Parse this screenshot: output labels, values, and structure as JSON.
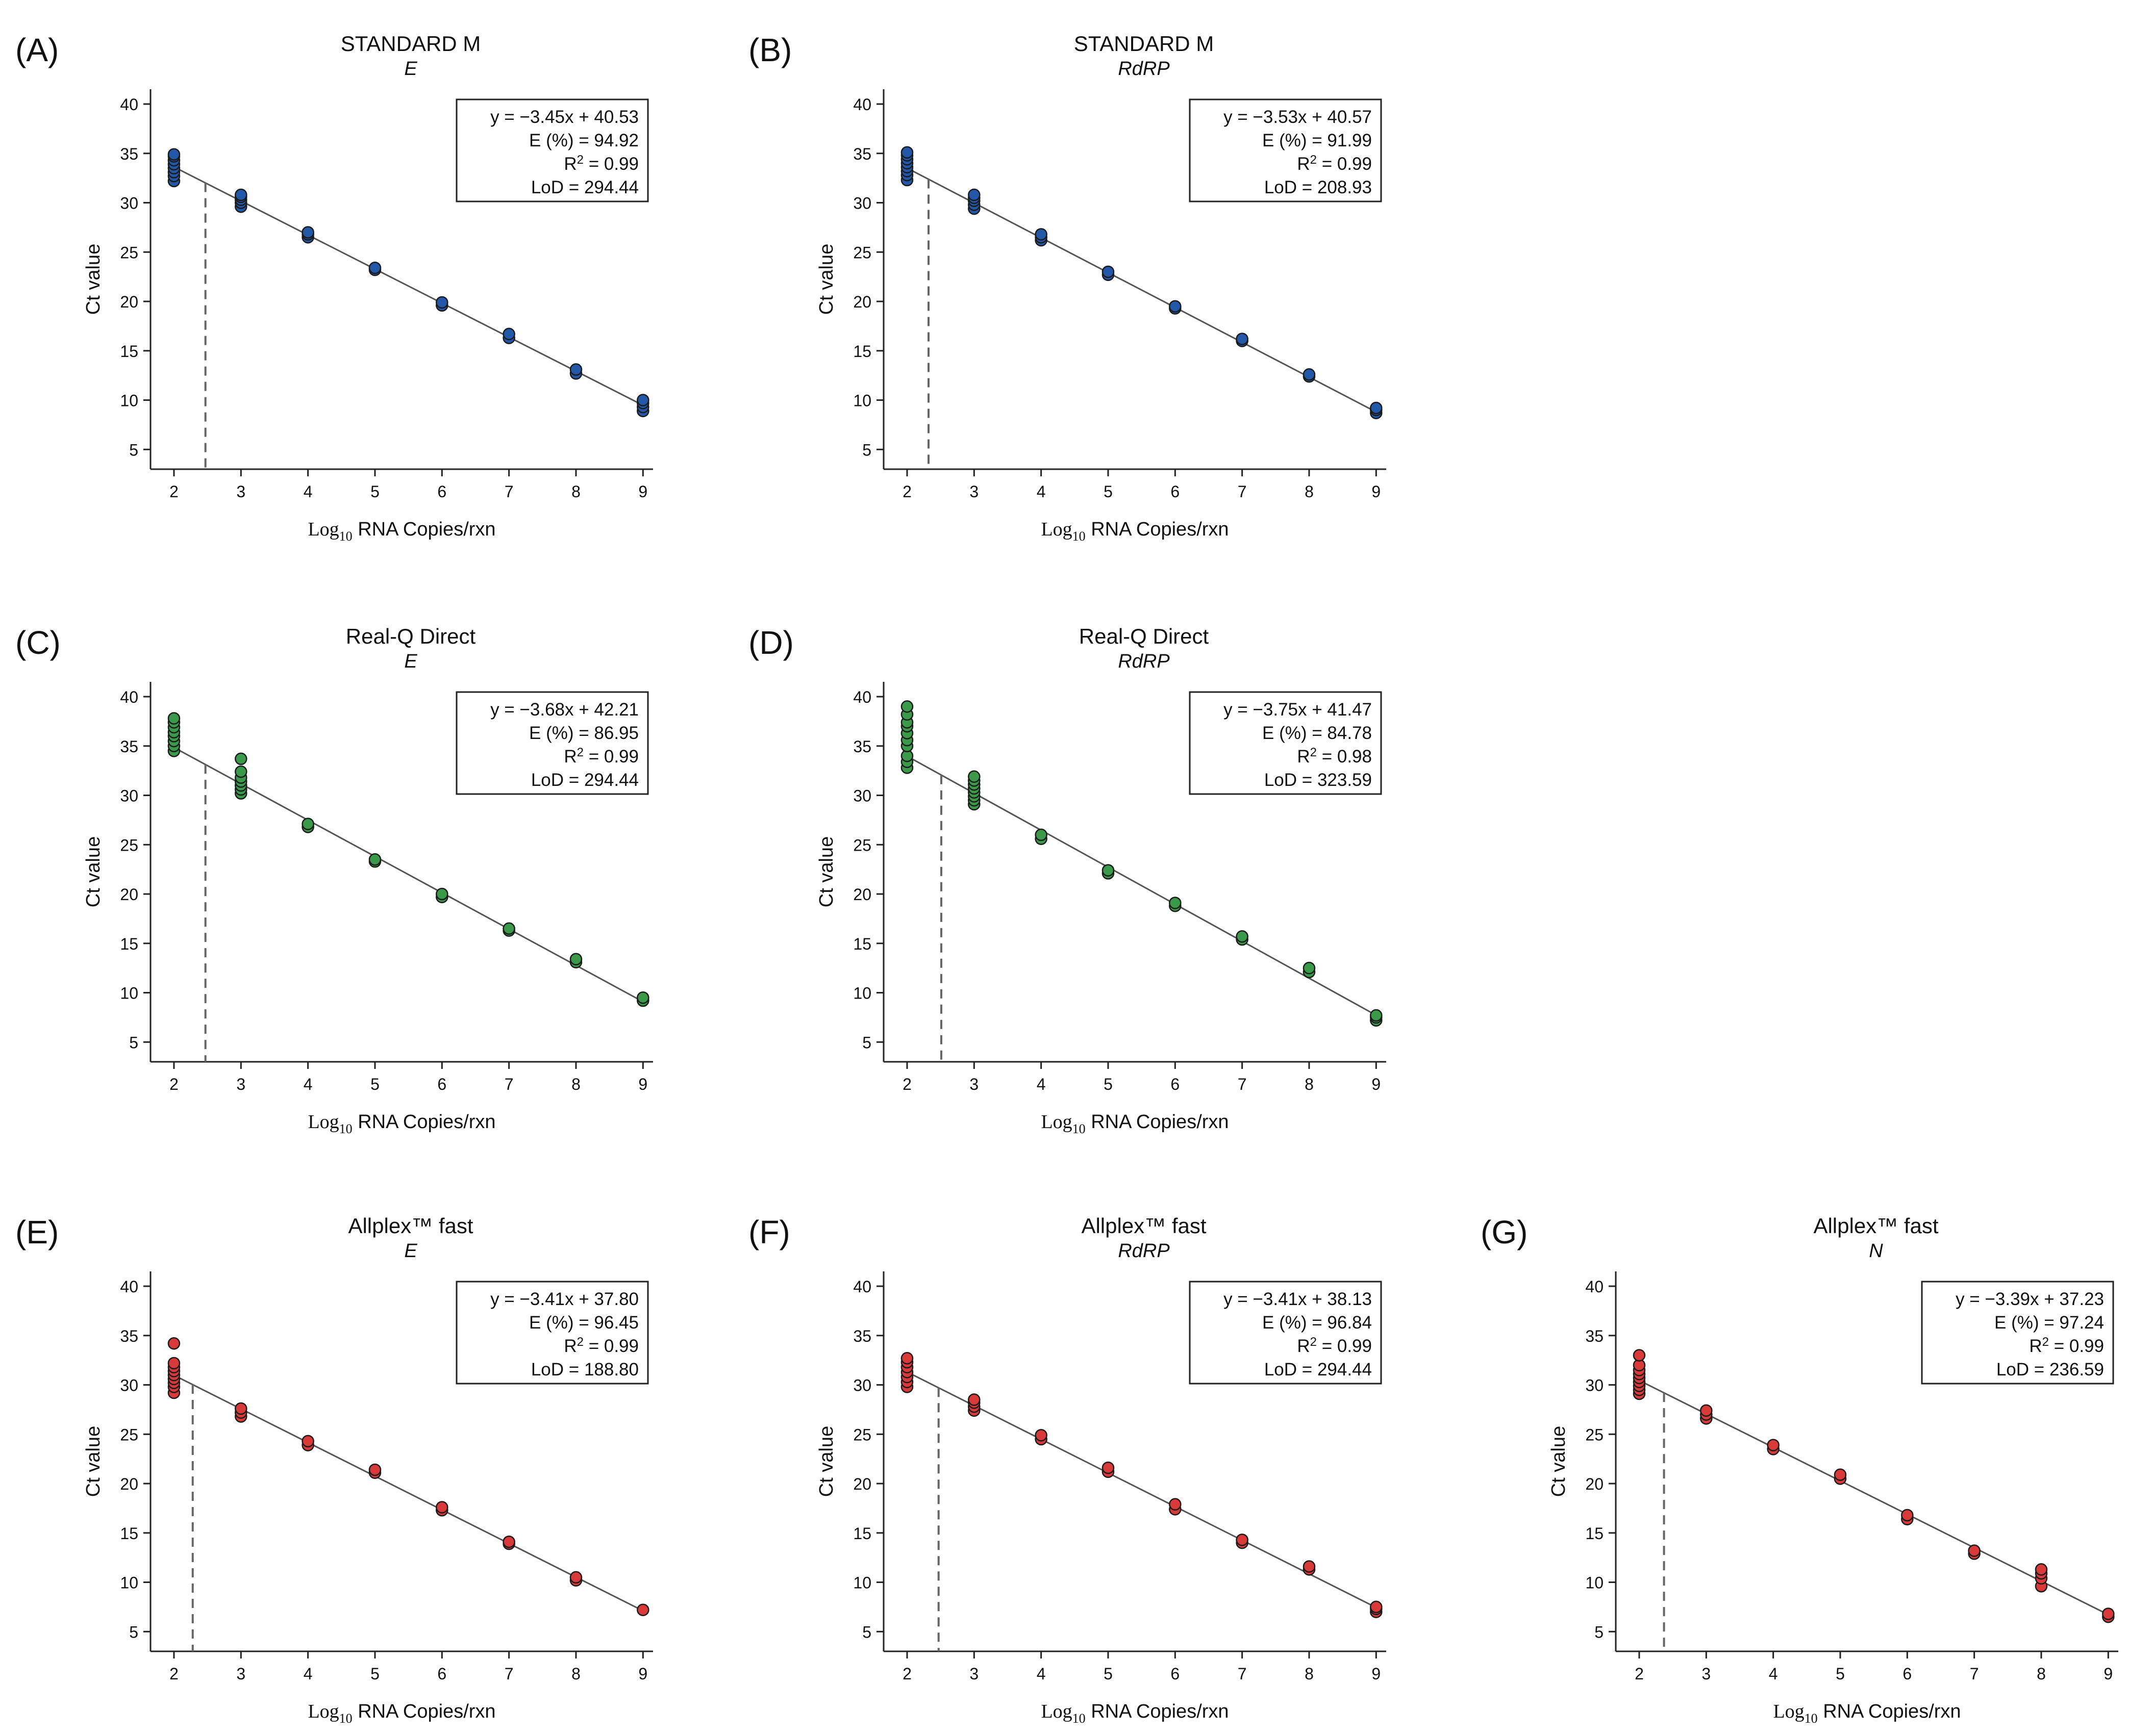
{
  "axis_common": {
    "ylabel": "Ct value",
    "xlabel_prefix": "Log",
    "xlabel_sub": "10",
    "xlabel_suffix": " RNA Copies/rxn",
    "xlim": [
      1.65,
      9.15
    ],
    "ylim": [
      3,
      41.5
    ],
    "xticks": [
      2,
      3,
      4,
      5,
      6,
      7,
      8,
      9
    ],
    "yticks": [
      5,
      10,
      15,
      20,
      25,
      30,
      35,
      40
    ]
  },
  "colors": {
    "blue": "#2358a8",
    "green": "#3a9a4a",
    "red": "#d83a3a",
    "line": "#555555",
    "dash": "#666666"
  },
  "chart_data": [
    {
      "type": "scatter",
      "panel": "(A)",
      "title": "STANDARD M",
      "subtitle": "E",
      "color": "blue",
      "legend": {
        "equation": "y = −3.45x + 40.53",
        "efficiency": "E (%) = 94.92",
        "r2_prefix": "R",
        "r2_value": "2 = 0.99",
        "lod": "LoD = 294.44"
      },
      "regression": {
        "slope": -3.45,
        "intercept": 40.53
      },
      "lod_log10": 2.47,
      "points": [
        {
          "x": 2,
          "y": [
            32.2,
            32.7,
            33.1,
            33.5,
            33.9,
            34.3,
            34.7,
            34.9
          ]
        },
        {
          "x": 3,
          "y": [
            29.6,
            30.0,
            30.3,
            30.6,
            30.8
          ]
        },
        {
          "x": 4,
          "y": [
            26.5,
            26.8,
            27.0
          ]
        },
        {
          "x": 5,
          "y": [
            23.2,
            23.4
          ]
        },
        {
          "x": 6,
          "y": [
            19.6,
            19.9
          ]
        },
        {
          "x": 7,
          "y": [
            16.3,
            16.7
          ]
        },
        {
          "x": 8,
          "y": [
            12.7,
            13.1
          ]
        },
        {
          "x": 9,
          "y": [
            8.9,
            9.3,
            9.7,
            10.0
          ]
        }
      ]
    },
    {
      "type": "scatter",
      "panel": "(B)",
      "title": "STANDARD M",
      "subtitle": "RdRP",
      "color": "blue",
      "legend": {
        "equation": "y = −3.53x + 40.57",
        "efficiency": "E (%) = 91.99",
        "r2_prefix": "R",
        "r2_value": "2 = 0.99",
        "lod": "LoD = 208.93"
      },
      "regression": {
        "slope": -3.53,
        "intercept": 40.57
      },
      "lod_log10": 2.32,
      "points": [
        {
          "x": 2,
          "y": [
            32.3,
            32.8,
            33.2,
            33.6,
            34.0,
            34.4,
            34.8,
            35.1
          ]
        },
        {
          "x": 3,
          "y": [
            29.4,
            29.8,
            30.2,
            30.5,
            30.8
          ]
        },
        {
          "x": 4,
          "y": [
            26.2,
            26.5,
            26.8
          ]
        },
        {
          "x": 5,
          "y": [
            22.7,
            23.0
          ]
        },
        {
          "x": 6,
          "y": [
            19.3,
            19.5
          ]
        },
        {
          "x": 7,
          "y": [
            16.0,
            16.2
          ]
        },
        {
          "x": 8,
          "y": [
            12.4,
            12.6
          ]
        },
        {
          "x": 9,
          "y": [
            8.7,
            9.0,
            9.2
          ]
        }
      ]
    },
    {
      "type": "scatter",
      "panel": "(C)",
      "title": "Real-Q Direct",
      "subtitle": "E",
      "color": "green",
      "legend": {
        "equation": "y = −3.68x + 42.21",
        "efficiency": "E (%) = 86.95",
        "r2_prefix": "R",
        "r2_value": "2 = 0.99",
        "lod": "LoD = 294.44"
      },
      "regression": {
        "slope": -3.68,
        "intercept": 42.21
      },
      "lod_log10": 2.47,
      "points": [
        {
          "x": 2,
          "y": [
            34.5,
            35.0,
            35.5,
            36.0,
            36.4,
            36.9,
            37.4,
            37.8
          ]
        },
        {
          "x": 3,
          "y": [
            30.2,
            30.6,
            31.0,
            31.4,
            31.8,
            32.4,
            33.7
          ]
        },
        {
          "x": 4,
          "y": [
            26.8,
            27.1
          ]
        },
        {
          "x": 5,
          "y": [
            23.3,
            23.5
          ]
        },
        {
          "x": 6,
          "y": [
            19.7,
            20.0
          ]
        },
        {
          "x": 7,
          "y": [
            16.3,
            16.5
          ]
        },
        {
          "x": 8,
          "y": [
            13.1,
            13.4
          ]
        },
        {
          "x": 9,
          "y": [
            9.2,
            9.5
          ]
        }
      ]
    },
    {
      "type": "scatter",
      "panel": "(D)",
      "title": "Real-Q Direct",
      "subtitle": "RdRP",
      "color": "green",
      "legend": {
        "equation": "y = −3.75x + 41.47",
        "efficiency": "E (%) = 84.78",
        "r2_prefix": "R",
        "r2_value": "2 = 0.98",
        "lod": "LoD = 323.59"
      },
      "regression": {
        "slope": -3.75,
        "intercept": 41.47
      },
      "lod_log10": 2.51,
      "points": [
        {
          "x": 2,
          "y": [
            32.8,
            33.4,
            34.0,
            35.0,
            35.6,
            36.3,
            37.0,
            37.4,
            38.2,
            39.0
          ]
        },
        {
          "x": 3,
          "y": [
            29.1,
            29.5,
            29.9,
            30.3,
            30.7,
            31.1,
            31.5,
            31.9
          ]
        },
        {
          "x": 4,
          "y": [
            25.6,
            26.0
          ]
        },
        {
          "x": 5,
          "y": [
            22.1,
            22.4
          ]
        },
        {
          "x": 6,
          "y": [
            18.8,
            19.1
          ]
        },
        {
          "x": 7,
          "y": [
            15.4,
            15.7
          ]
        },
        {
          "x": 8,
          "y": [
            12.1,
            12.5
          ]
        },
        {
          "x": 9,
          "y": [
            7.2,
            7.5,
            7.7
          ]
        }
      ]
    },
    {
      "type": "scatter",
      "panel": "(E)",
      "title": "Allplex™ fast",
      "subtitle": "E",
      "color": "red",
      "legend": {
        "equation": "y = −3.41x + 37.80",
        "efficiency": "E (%) = 96.45",
        "r2_prefix": "R",
        "r2_value": "2 = 0.99",
        "lod": "LoD = 188.80"
      },
      "regression": {
        "slope": -3.41,
        "intercept": 37.8
      },
      "lod_log10": 2.28,
      "points": [
        {
          "x": 2,
          "y": [
            29.2,
            29.8,
            30.2,
            30.6,
            31.0,
            31.4,
            31.8,
            32.2,
            34.2
          ]
        },
        {
          "x": 3,
          "y": [
            26.8,
            27.2,
            27.6
          ]
        },
        {
          "x": 4,
          "y": [
            23.9,
            24.3
          ]
        },
        {
          "x": 5,
          "y": [
            21.1,
            21.4
          ]
        },
        {
          "x": 6,
          "y": [
            17.3,
            17.6
          ]
        },
        {
          "x": 7,
          "y": [
            13.9,
            14.1
          ]
        },
        {
          "x": 8,
          "y": [
            10.2,
            10.5
          ]
        },
        {
          "x": 9,
          "y": [
            7.2
          ]
        }
      ]
    },
    {
      "type": "scatter",
      "panel": "(F)",
      "title": "Allplex™ fast",
      "subtitle": "RdRP",
      "color": "red",
      "legend": {
        "equation": "y = −3.41x + 38.13",
        "efficiency": "E (%) = 96.84",
        "r2_prefix": "R",
        "r2_value": "2 = 0.99",
        "lod": "LoD = 294.44"
      },
      "regression": {
        "slope": -3.41,
        "intercept": 38.13
      },
      "lod_log10": 2.47,
      "points": [
        {
          "x": 2,
          "y": [
            29.8,
            30.3,
            30.8,
            31.3,
            31.8,
            32.3,
            32.7
          ]
        },
        {
          "x": 3,
          "y": [
            27.4,
            27.8,
            28.2,
            28.5
          ]
        },
        {
          "x": 4,
          "y": [
            24.5,
            24.9
          ]
        },
        {
          "x": 5,
          "y": [
            21.2,
            21.6
          ]
        },
        {
          "x": 6,
          "y": [
            17.4,
            17.9
          ]
        },
        {
          "x": 7,
          "y": [
            14.0,
            14.3
          ]
        },
        {
          "x": 8,
          "y": [
            11.3,
            11.6
          ]
        },
        {
          "x": 9,
          "y": [
            7.0,
            7.3,
            7.5
          ]
        }
      ]
    },
    {
      "type": "scatter",
      "panel": "(G)",
      "title": "Allplex™ fast",
      "subtitle": "N",
      "color": "red",
      "legend": {
        "equation": "y = −3.39x + 37.23",
        "efficiency": "E (%) = 97.24",
        "r2_prefix": "R",
        "r2_value": "2 = 0.99",
        "lod": "LoD = 236.59"
      },
      "regression": {
        "slope": -3.39,
        "intercept": 37.23
      },
      "lod_log10": 2.37,
      "points": [
        {
          "x": 2,
          "y": [
            29.1,
            29.5,
            29.9,
            30.3,
            30.7,
            31.1,
            31.5,
            32.0,
            33.0
          ]
        },
        {
          "x": 3,
          "y": [
            26.6,
            27.0,
            27.4
          ]
        },
        {
          "x": 4,
          "y": [
            23.5,
            23.9
          ]
        },
        {
          "x": 5,
          "y": [
            20.5,
            20.9
          ]
        },
        {
          "x": 6,
          "y": [
            16.4,
            16.8
          ]
        },
        {
          "x": 7,
          "y": [
            12.9,
            13.2
          ]
        },
        {
          "x": 8,
          "y": [
            9.6,
            10.4,
            10.9,
            11.3
          ]
        },
        {
          "x": 9,
          "y": [
            6.5,
            6.8
          ]
        }
      ]
    }
  ]
}
